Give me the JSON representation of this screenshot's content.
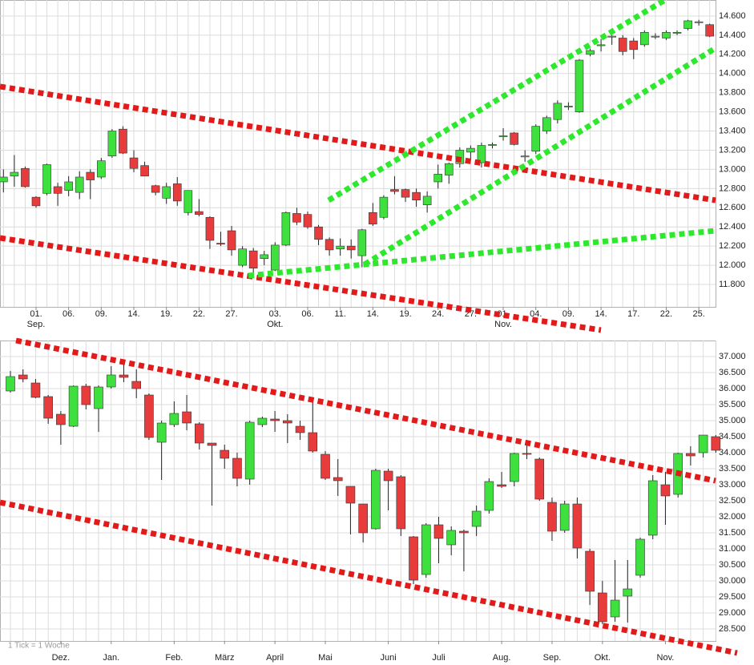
{
  "chart_data": [
    {
      "type": "candlestick",
      "up_color": "#3ee03e",
      "down_color": "#e83c3c",
      "grid": true,
      "categories": [
        null,
        null,
        null,
        "01.",
        null,
        null,
        "06.",
        null,
        null,
        "09.",
        null,
        null,
        "14.",
        null,
        null,
        "19.",
        null,
        null,
        "22.",
        null,
        null,
        "27.",
        null,
        null,
        null,
        "03.",
        null,
        null,
        "06.",
        null,
        null,
        "11.",
        null,
        null,
        "14.",
        null,
        null,
        "19.",
        null,
        null,
        "24.",
        null,
        null,
        "27.",
        null,
        null,
        "01.",
        null,
        null,
        "04.",
        null,
        null,
        "09.",
        null,
        null,
        "14.",
        null,
        null,
        "17.",
        null,
        null,
        "22.",
        null,
        null,
        "25.",
        null
      ],
      "months": [
        null,
        null,
        null,
        "Sep.",
        null,
        null,
        null,
        null,
        null,
        null,
        null,
        null,
        null,
        null,
        null,
        null,
        null,
        null,
        null,
        null,
        null,
        null,
        null,
        null,
        null,
        "Okt.",
        null,
        null,
        null,
        null,
        null,
        null,
        null,
        null,
        null,
        null,
        null,
        null,
        null,
        null,
        null,
        null,
        null,
        null,
        null,
        null,
        "Nov.",
        null,
        null,
        null,
        null,
        null,
        null,
        null,
        null,
        null,
        null,
        null,
        null,
        null,
        null,
        null,
        null,
        null,
        null,
        null
      ],
      "open": [
        12870,
        12930,
        13010,
        12710,
        12750,
        12820,
        12780,
        12760,
        12970,
        12920,
        13140,
        13420,
        13120,
        13040,
        12830,
        12700,
        12850,
        12550,
        12560,
        12500,
        12230,
        12360,
        12000,
        12150,
        12070,
        11950,
        12210,
        12540,
        12530,
        12400,
        12270,
        12170,
        12200,
        12100,
        12550,
        12500,
        12790,
        12790,
        12760,
        12630,
        12870,
        12940,
        13060,
        13180,
        13070,
        13250,
        13340,
        13380,
        13130,
        13190,
        13400,
        13520,
        13650,
        13600,
        14200,
        14290,
        14380,
        14370,
        14340,
        14300,
        14380,
        14370,
        14420,
        14470,
        14530,
        14510
      ],
      "high": [
        13000,
        13150,
        13030,
        12720,
        13060,
        12860,
        12930,
        12980,
        13000,
        13120,
        13420,
        13450,
        13200,
        13080,
        12840,
        12860,
        12920,
        12780,
        12690,
        12510,
        12350,
        12410,
        12200,
        12180,
        12150,
        12240,
        12560,
        12600,
        12560,
        12420,
        12290,
        12280,
        12270,
        12380,
        12650,
        12730,
        12930,
        12800,
        12800,
        12770,
        13050,
        13070,
        13230,
        13250,
        13280,
        13280,
        13430,
        13390,
        13200,
        13470,
        13560,
        13720,
        13700,
        14150,
        14260,
        14360,
        14400,
        14400,
        14370,
        14450,
        14420,
        14450,
        14450,
        14560,
        14560,
        14520
      ],
      "low": [
        12760,
        12820,
        12810,
        12600,
        12730,
        12620,
        12720,
        12690,
        12690,
        12900,
        13120,
        13160,
        12970,
        12930,
        12730,
        12640,
        12620,
        12520,
        12510,
        12170,
        12200,
        12100,
        11980,
        11870,
        12000,
        11940,
        12200,
        12420,
        12380,
        12210,
        12100,
        12100,
        12070,
        11980,
        12410,
        12480,
        12740,
        12660,
        12610,
        12550,
        12800,
        12850,
        13020,
        13100,
        13020,
        13220,
        13300,
        13250,
        13080,
        13160,
        13370,
        13480,
        13620,
        13590,
        14180,
        14230,
        14300,
        14190,
        14150,
        14280,
        14360,
        14350,
        14400,
        14450,
        14500,
        14380
      ],
      "close": [
        12920,
        12970,
        12820,
        12620,
        13050,
        12750,
        12870,
        12920,
        12890,
        13090,
        13400,
        13170,
        13010,
        12930,
        12760,
        12820,
        12670,
        12780,
        12530,
        12260,
        12220,
        12160,
        12170,
        11970,
        12110,
        12210,
        12550,
        12450,
        12400,
        12270,
        12160,
        12200,
        12160,
        12370,
        12430,
        12710,
        12770,
        12710,
        12680,
        12720,
        12950,
        13060,
        13200,
        13220,
        13250,
        13260,
        13350,
        13260,
        13140,
        13450,
        13540,
        13690,
        13660,
        14140,
        14240,
        14300,
        14390,
        14230,
        14250,
        14430,
        14390,
        14430,
        14430,
        14550,
        14540,
        14390
      ],
      "ylim": [
        11566,
        14767
      ],
      "yticks": [
        {
          "value": 11800,
          "label": "11.800"
        },
        {
          "value": 12000,
          "label": "12.000"
        },
        {
          "value": 12200,
          "label": "12.200"
        },
        {
          "value": 12400,
          "label": "12.400"
        },
        {
          "value": 12600,
          "label": "12.600"
        },
        {
          "value": 12800,
          "label": "12.800"
        },
        {
          "value": 13000,
          "label": "13.000"
        },
        {
          "value": 13200,
          "label": "13.200"
        },
        {
          "value": 13400,
          "label": "13.400"
        },
        {
          "value": 13600,
          "label": "13.600"
        },
        {
          "value": 13800,
          "label": "13.800"
        },
        {
          "value": 14000,
          "label": "14.000"
        },
        {
          "value": 14200,
          "label": "14.200"
        },
        {
          "value": 14400,
          "label": "14.400"
        },
        {
          "value": 14600,
          "label": "14.600"
        }
      ]
    },
    {
      "type": "candlestick",
      "up_color": "#3ee03e",
      "down_color": "#e83c3c",
      "grid": true,
      "note": "1 Tick = 1 Woche",
      "categories": [
        null,
        null,
        null,
        null,
        "Dez.",
        null,
        null,
        null,
        "Jan.",
        null,
        null,
        null,
        null,
        "Feb.",
        null,
        null,
        null,
        "März",
        null,
        null,
        null,
        "April",
        null,
        null,
        null,
        "Mai",
        null,
        null,
        null,
        null,
        "Juni",
        null,
        null,
        null,
        "Juli",
        null,
        null,
        null,
        null,
        "Aug.",
        null,
        null,
        null,
        "Sep.",
        null,
        null,
        null,
        "Okt.",
        null,
        null,
        null,
        null,
        "Nov.",
        null,
        null,
        null,
        null
      ],
      "open": [
        35925,
        36425,
        36175,
        35750,
        35200,
        34825,
        36075,
        35375,
        36050,
        36425,
        36225,
        35800,
        34325,
        34875,
        35275,
        34900,
        34300,
        34075,
        33825,
        33175,
        34875,
        35050,
        35000,
        34825,
        34625,
        33950,
        33225,
        32950,
        32400,
        31625,
        33425,
        33250,
        31375,
        30200,
        31750,
        31125,
        31550,
        31700,
        32200,
        33000,
        33100,
        33975,
        33800,
        32450,
        31575,
        32400,
        30925,
        29625,
        28875,
        29525,
        30175,
        31425,
        33000,
        32700,
        33975,
        34000,
        34500
      ],
      "high": [
        36550,
        36600,
        36300,
        35800,
        35300,
        36100,
        36150,
        36100,
        36700,
        36900,
        36600,
        35850,
        35000,
        35600,
        35800,
        34950,
        34300,
        34250,
        34000,
        35000,
        35125,
        35300,
        35200,
        35000,
        35700,
        34050,
        33800,
        32950,
        32400,
        33500,
        33500,
        33300,
        31400,
        31800,
        32000,
        31700,
        31600,
        32350,
        33200,
        33400,
        34000,
        34350,
        33850,
        32600,
        32500,
        32600,
        31000,
        30000,
        30650,
        30650,
        31350,
        33300,
        33400,
        34000,
        34200,
        34550,
        34550
      ],
      "low": [
        35875,
        36200,
        35700,
        34900,
        34250,
        34800,
        35350,
        34650,
        36000,
        36200,
        35700,
        34400,
        33150,
        34800,
        34700,
        34100,
        32350,
        33500,
        32950,
        33000,
        34800,
        34650,
        34300,
        34400,
        34000,
        33150,
        32650,
        31450,
        31200,
        31600,
        32200,
        31400,
        29900,
        30100,
        30550,
        30800,
        30300,
        31400,
        32100,
        32900,
        32950,
        33800,
        32500,
        31250,
        31500,
        30700,
        29250,
        28650,
        28725,
        28700,
        30100,
        31300,
        31750,
        32600,
        33600,
        33850,
        34000
      ],
      "close": [
        36375,
        36300,
        35725,
        35075,
        34875,
        36075,
        35500,
        36050,
        36425,
        36350,
        36000,
        34475,
        34925,
        35225,
        34925,
        34300,
        34225,
        33825,
        33200,
        34950,
        35075,
        35000,
        34925,
        34625,
        34050,
        33200,
        33125,
        32425,
        31500,
        33450,
        33125,
        31625,
        30025,
        31750,
        31325,
        31575,
        31500,
        32175,
        33100,
        32950,
        33975,
        33950,
        32550,
        31550,
        32400,
        31025,
        29675,
        28725,
        29400,
        29750,
        31300,
        33125,
        32650,
        33975,
        33900,
        34550,
        34075
      ],
      "ylim": [
        28125,
        37500
      ],
      "yticks": [
        {
          "value": 28500,
          "label": "28.500"
        },
        {
          "value": 29000,
          "label": "29.000"
        },
        {
          "value": 29500,
          "label": "29.500"
        },
        {
          "value": 30000,
          "label": "30.000"
        },
        {
          "value": 30500,
          "label": "30.500"
        },
        {
          "value": 31000,
          "label": "31.000"
        },
        {
          "value": 31500,
          "label": "31.500"
        },
        {
          "value": 32000,
          "label": "32.000"
        },
        {
          "value": 32500,
          "label": "32.500"
        },
        {
          "value": 33000,
          "label": "33.000"
        },
        {
          "value": 33500,
          "label": "33.500"
        },
        {
          "value": 34000,
          "label": "34.000"
        },
        {
          "value": 34500,
          "label": "34.500"
        },
        {
          "value": 35000,
          "label": "35.000"
        },
        {
          "value": 35500,
          "label": "35.500"
        },
        {
          "value": 36000,
          "label": "36.000"
        },
        {
          "value": 36500,
          "label": "36.500"
        },
        {
          "value": 37000,
          "label": "37.000"
        }
      ]
    }
  ]
}
